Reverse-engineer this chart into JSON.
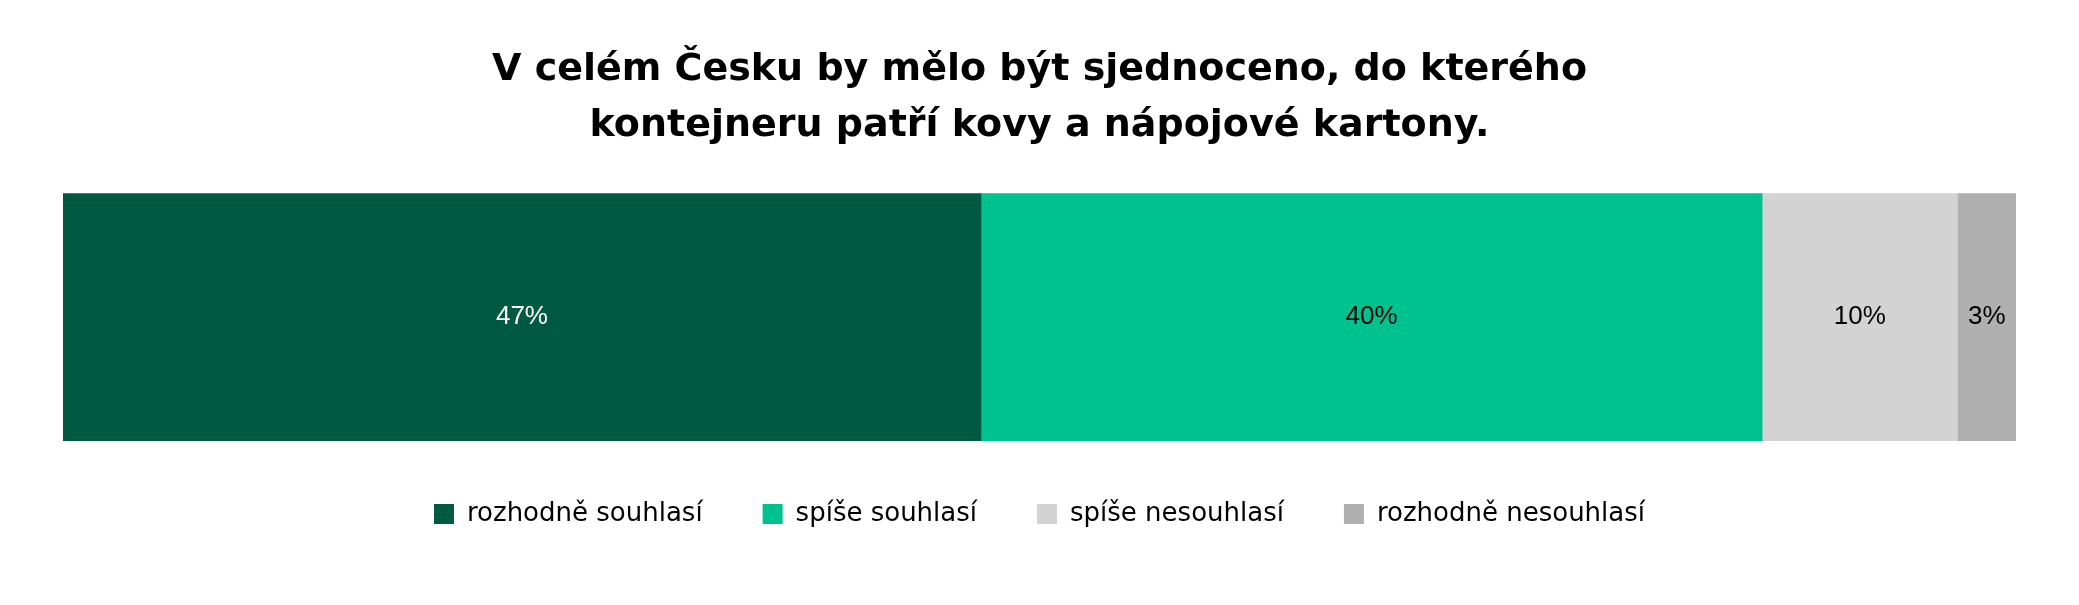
{
  "chart_data": {
    "type": "bar",
    "orientation": "horizontal",
    "stacked": true,
    "title": "V celém Česku by mělo být sjednoceno, do kterého kontejneru patří kovy a nápojové kartony.",
    "categories": [
      null
    ],
    "xlim": [
      0,
      100
    ],
    "tick_labels": false,
    "legend": "bottom",
    "series": [
      {
        "name": "rozhodně souhlasí",
        "color": "#005a41",
        "values": [
          47
        ],
        "value_labels": [
          "47%"
        ]
      },
      {
        "name": "spíše souhlasí",
        "color": "#00c28f",
        "values": [
          40
        ],
        "value_labels": [
          "40%"
        ]
      },
      {
        "name": "spíše nesouhlasí",
        "color": "#d3d3d3",
        "values": [
          10
        ],
        "value_labels": [
          "10%"
        ]
      },
      {
        "name": "rozhodně nesouhlasí",
        "color": "#b0b0b1",
        "values": [
          3
        ],
        "value_labels": [
          "3%"
        ]
      }
    ]
  }
}
